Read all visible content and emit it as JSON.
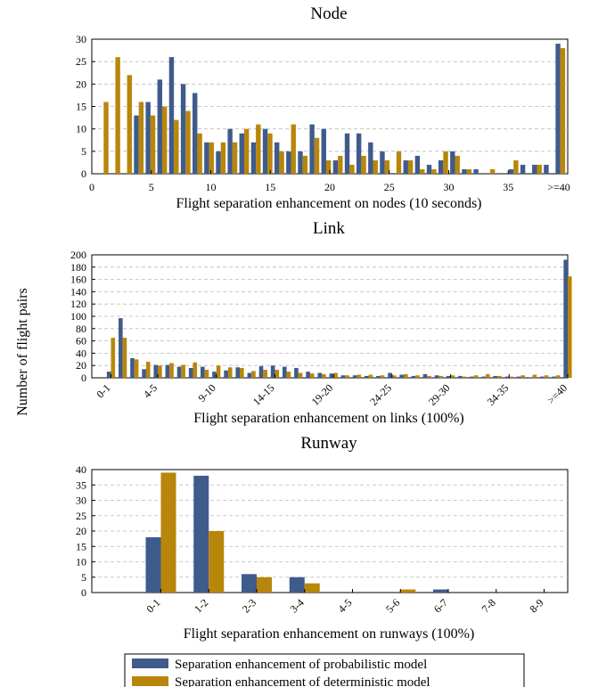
{
  "ylabel": "Number of flight pairs",
  "colors": {
    "probabilistic": "#3f5b8c",
    "deterministic": "#b8860b"
  },
  "legend": {
    "probabilistic": "Separation enhancement of probabilistic model",
    "deterministic": "Separation enhancement of deterministic model"
  },
  "chart_data": [
    {
      "type": "bar",
      "title": "Node",
      "xlabel": "Flight separation enhancement on nodes (10 seconds)",
      "x": [
        1,
        2,
        3,
        4,
        5,
        6,
        7,
        8,
        9,
        10,
        11,
        12,
        13,
        14,
        15,
        16,
        17,
        18,
        19,
        20,
        21,
        22,
        23,
        24,
        25,
        26,
        27,
        28,
        29,
        30,
        31,
        32,
        33,
        34,
        35,
        36,
        37,
        38,
        39,
        40
      ],
      "ylim": [
        0,
        30
      ],
      "yticks": [
        0,
        5,
        10,
        15,
        20,
        25,
        30
      ],
      "xticks": [
        "0",
        "5",
        "10",
        "15",
        "20",
        "25",
        "30",
        "35",
        ">=40"
      ],
      "series": [
        {
          "key": "probabilistic",
          "values": [
            0,
            0,
            0,
            13,
            16,
            21,
            26,
            20,
            18,
            7,
            5,
            10,
            9,
            7,
            10,
            7,
            5,
            5,
            11,
            10,
            3,
            9,
            9,
            7,
            5,
            0,
            3,
            4,
            2,
            3,
            5,
            1,
            1,
            0,
            0,
            1,
            2,
            2,
            2,
            29
          ]
        },
        {
          "key": "deterministic",
          "values": [
            16,
            26,
            22,
            16,
            13,
            15,
            12,
            14,
            9,
            7,
            7,
            7,
            10,
            11,
            9,
            5,
            11,
            4,
            8,
            3,
            4,
            2,
            4,
            3,
            3,
            5,
            3,
            1,
            1,
            5,
            4,
            1,
            0,
            1,
            0,
            3,
            0,
            2,
            0,
            28
          ]
        }
      ]
    },
    {
      "type": "bar",
      "title": "Link",
      "xlabel": "Flight separation enhancement on links (100%)",
      "ylim": [
        0,
        200
      ],
      "yticks": [
        0,
        20,
        40,
        60,
        80,
        100,
        120,
        140,
        160,
        180,
        200
      ],
      "categories": [
        "0-1",
        "1-2",
        "2-3",
        "3-4",
        "4-5",
        "5-6",
        "6-7",
        "7-8",
        "8-9",
        "9-10",
        "10-11",
        "11-12",
        "12-13",
        "13-14",
        "14-15",
        "15-16",
        "16-17",
        "17-18",
        "18-19",
        "19-20",
        "20-21",
        "21-22",
        "22-23",
        "23-24",
        "24-25",
        "25-26",
        "26-27",
        "27-28",
        "28-29",
        "29-30",
        "30-31",
        "31-32",
        "32-33",
        "33-34",
        "34-35",
        "35-36",
        "36-37",
        "37-38",
        "38-39",
        ">=40"
      ],
      "ticklabels": [
        "0-1",
        "4-5",
        "9-10",
        "14-15",
        "19-20",
        "24-25",
        "29-30",
        "34-35",
        ">=40"
      ],
      "series": [
        {
          "key": "probabilistic",
          "values": [
            10,
            97,
            32,
            14,
            21,
            21,
            18,
            16,
            18,
            10,
            12,
            17,
            8,
            19,
            20,
            18,
            16,
            10,
            8,
            7,
            4,
            4,
            3,
            3,
            8,
            5,
            3,
            6,
            4,
            3,
            3,
            2,
            2,
            3,
            2,
            2,
            1,
            2,
            2,
            192
          ]
        },
        {
          "key": "deterministic",
          "values": [
            65,
            65,
            30,
            26,
            20,
            24,
            21,
            25,
            13,
            20,
            17,
            16,
            11,
            13,
            13,
            10,
            8,
            7,
            6,
            8,
            4,
            5,
            5,
            4,
            4,
            6,
            4,
            3,
            3,
            4,
            2,
            4,
            6,
            3,
            2,
            4,
            5,
            4,
            4,
            165
          ]
        }
      ]
    },
    {
      "type": "bar",
      "title": "Runway",
      "xlabel": "Flight separation enhancement on runways (100%)",
      "ylim": [
        0,
        40
      ],
      "yticks": [
        0,
        5,
        10,
        15,
        20,
        25,
        30,
        35,
        40
      ],
      "categories": [
        "0-1",
        "1-2",
        "2-3",
        "3-4",
        "4-5",
        "5-6",
        "6-7",
        "7-8",
        "8-9"
      ],
      "series": [
        {
          "key": "probabilistic",
          "values": [
            18,
            38,
            6,
            5,
            0,
            0,
            1,
            0,
            0
          ]
        },
        {
          "key": "deterministic",
          "values": [
            39,
            20,
            5,
            3,
            0,
            1,
            0,
            0,
            0
          ]
        }
      ]
    }
  ]
}
